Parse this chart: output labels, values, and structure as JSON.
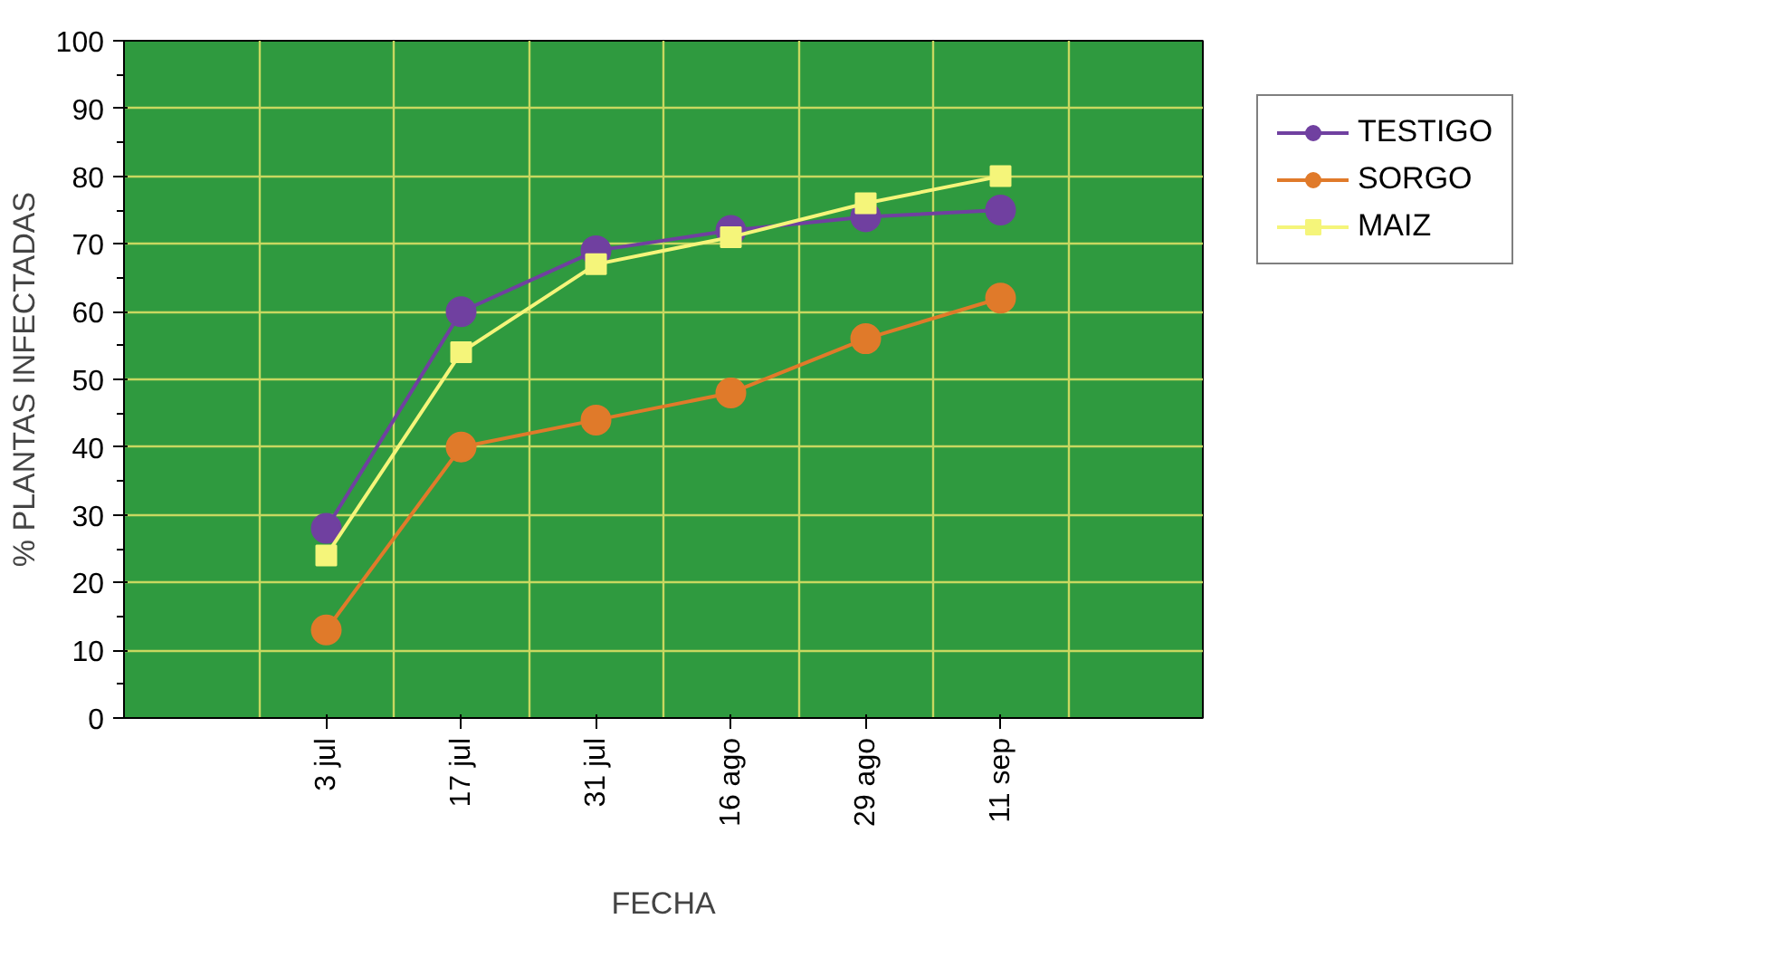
{
  "chart_data": {
    "type": "line",
    "xlabel": "FECHA",
    "ylabel": "% PLANTAS INFECTADAS",
    "categories": [
      null,
      "3 jul",
      "17 jul",
      "31 jul",
      "16 ago",
      "29 ago",
      "11 sep",
      null
    ],
    "ylim": [
      0,
      100
    ],
    "yticks": [
      0,
      10,
      20,
      30,
      40,
      50,
      60,
      70,
      80,
      90,
      100
    ],
    "grid": true,
    "legend": "top right",
    "series": [
      {
        "name": "TESTIGO",
        "color": "#7040a0",
        "marker": "circle",
        "values": [
          null,
          28,
          60,
          69,
          72,
          74,
          75,
          null
        ]
      },
      {
        "name": "SORGO",
        "color": "#e07a2a",
        "marker": "circle",
        "values": [
          null,
          13,
          40,
          44,
          48,
          56,
          62,
          null
        ]
      },
      {
        "name": "MAIZ",
        "color": "#f5f57a",
        "marker": "square",
        "values": [
          null,
          24,
          54,
          67,
          71,
          76,
          80,
          null
        ]
      }
    ]
  }
}
